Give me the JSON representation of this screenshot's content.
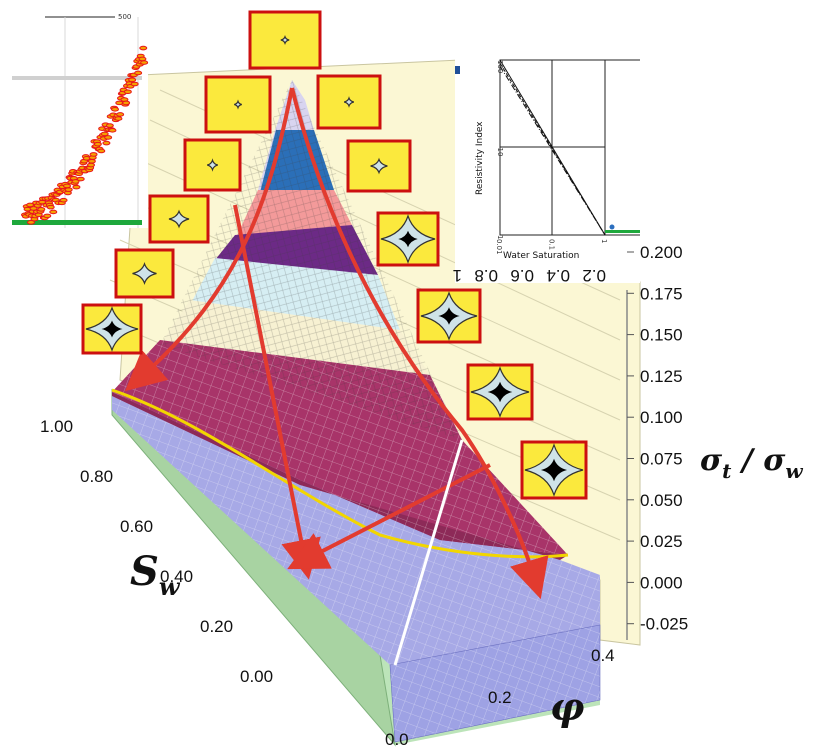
{
  "chart_data": [
    {
      "type": "surface",
      "x_axis": {
        "symbol": "φ",
        "ticks": [
          "0.0",
          "0.2",
          "0.4"
        ]
      },
      "y_axis": {
        "symbol_main": "S",
        "symbol_sub": "w",
        "ticks": [
          "1.00",
          "0.80",
          "0.60",
          "0.40",
          "0.20",
          "0.00"
        ]
      },
      "z_axis": {
        "label_main": "σ",
        "label_sub1": "t",
        "label_sep": " / ",
        "label_main2": "σ",
        "label_sub2": "w",
        "ticks": [
          "0.200",
          "0.175",
          "0.150",
          "0.125",
          "0.100",
          "0.075",
          "0.050",
          "0.025",
          "0.000",
          "-0.025"
        ],
        "range": [
          -0.025,
          0.2
        ]
      },
      "colors": {
        "surface_low": "#a7a9e6",
        "surface_mid": "#a83469",
        "contour_line": "#f2d600",
        "path_arrows": "#e23b2f",
        "grain_icon_bg": "#fbe93d",
        "grain_icon_border": "#cc1010"
      },
      "pore_icons": [
        {
          "grain": "gray-blue",
          "pore_fill": 0.0
        },
        {
          "grain": "gray-blue",
          "pore_fill": 0.0
        },
        {
          "grain": "gray-blue",
          "pore_fill": 0.05
        },
        {
          "grain": "gray-blue",
          "pore_fill": 0.1
        },
        {
          "grain": "gray-blue",
          "pore_fill": 0.2
        },
        {
          "grain": "gray-blue",
          "pore_fill": 0.3
        },
        {
          "grain": "gray-blue",
          "pore_fill": 0.4
        },
        {
          "grain": "black",
          "pore_fill": 0.2
        },
        {
          "grain": "black",
          "pore_fill": 0.35
        },
        {
          "grain": "black",
          "pore_fill": 0.5
        },
        {
          "grain": "black",
          "pore_fill": 0.65
        },
        {
          "grain": "black",
          "pore_fill": 0.8
        },
        {
          "grain": "black",
          "pore_fill": 0.95
        }
      ]
    },
    {
      "type": "line",
      "title": "",
      "xlabel": "Water Saturation",
      "ylabel": "Resistivity Index",
      "x_ticks": [
        "0.01",
        "0.1",
        "1"
      ],
      "y_ticks": [
        "100",
        "10",
        "1"
      ],
      "x_scale": "log",
      "y_scale": "log",
      "series": [
        {
          "style": "solid",
          "x": [
            0.01,
            1
          ],
          "y": [
            100,
            1
          ]
        },
        {
          "style": "dashed",
          "x": [
            0.01,
            1
          ],
          "y": [
            92,
            1
          ]
        },
        {
          "style": "dashdot",
          "x": [
            0.01,
            1
          ],
          "y": [
            85,
            1
          ]
        }
      ]
    },
    {
      "type": "scatter",
      "corner_label": "500",
      "colors": {
        "points": "#e8151b",
        "baseline": "#1ea83c",
        "band": "#d0d0d0"
      }
    }
  ],
  "rotated_axis_ticks": [
    "1",
    "0.8",
    "0.6",
    "0.4",
    "0.2"
  ]
}
